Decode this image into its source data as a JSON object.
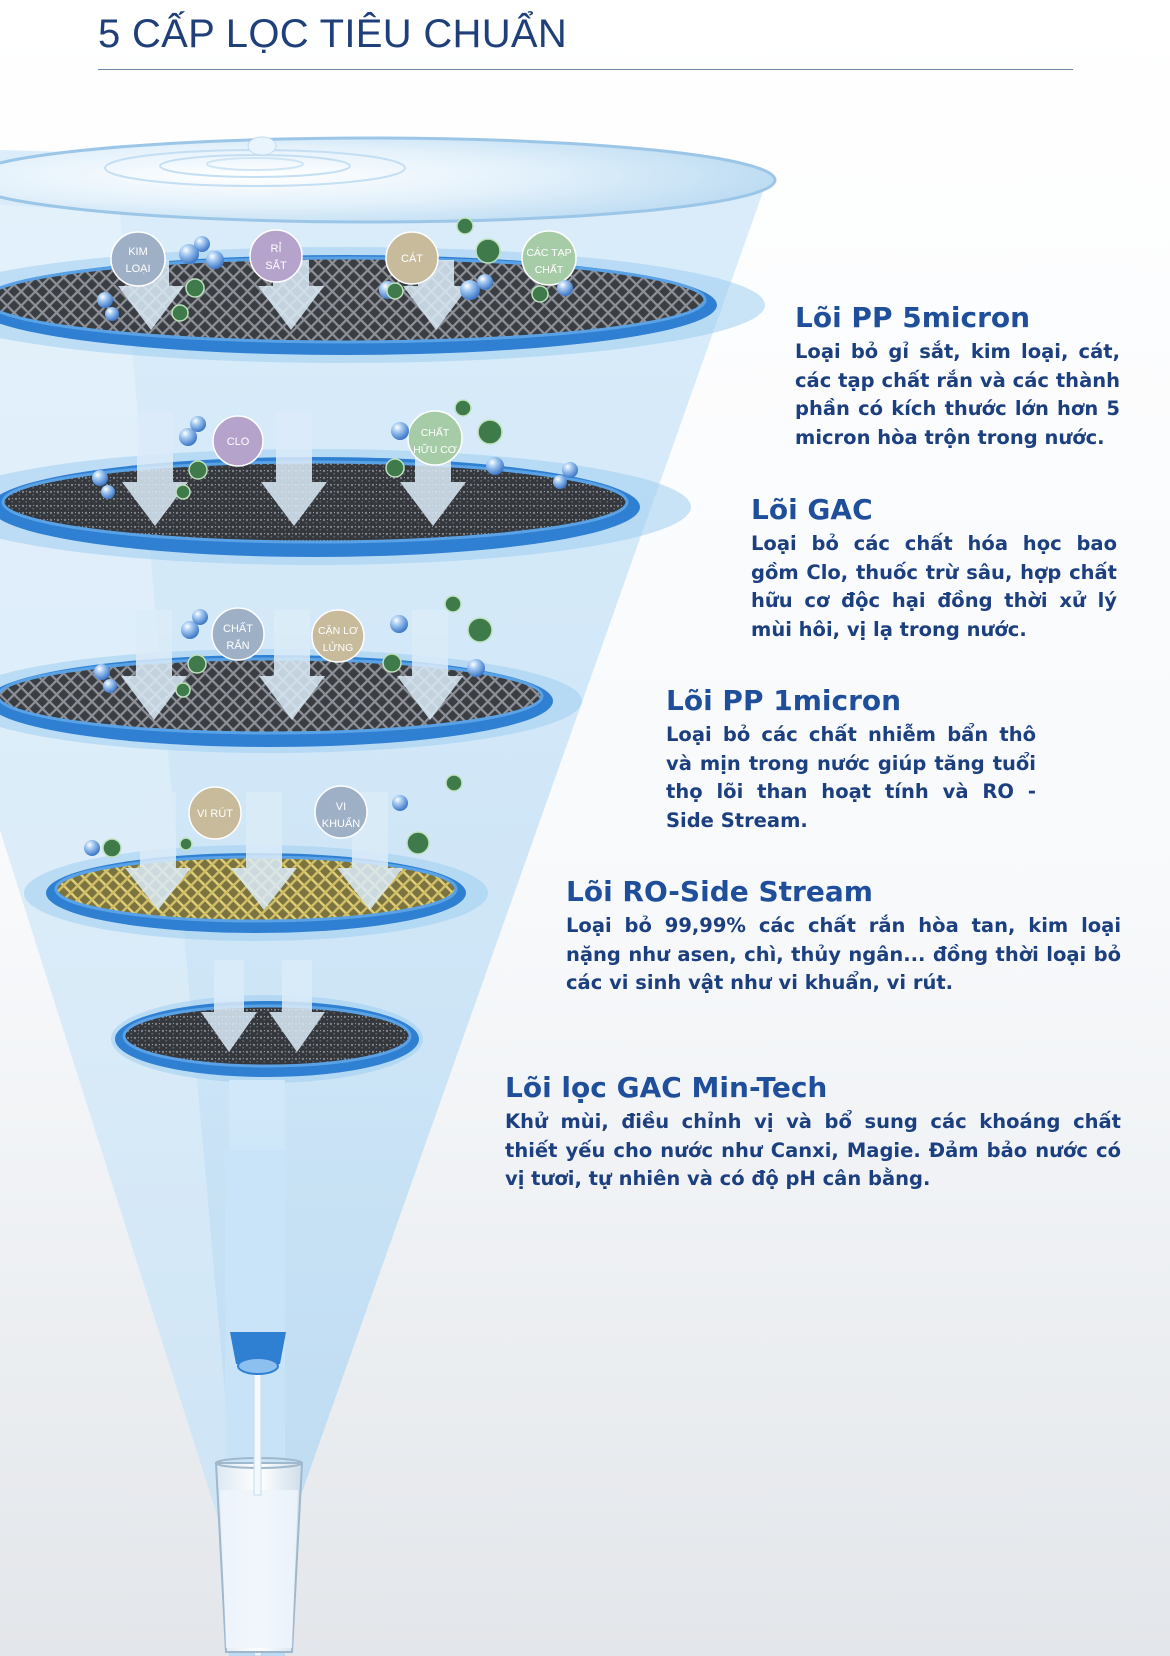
{
  "title": "5 CẤP LỌC TIÊU CHUẨN",
  "colors": {
    "title": "#1f3f7a",
    "stage_name": "#1f4f9a",
    "stage_desc": "#1c3f80",
    "rim_blue": "#2f7fd2",
    "funnel_light": "#cfe6f8",
    "mesh_dark": "#3a3d42",
    "mesh_gold": "#b8a555",
    "bubble_blue": "#5a93d9",
    "bacteria_green": "#3f7a4a"
  },
  "contaminant_labels": {
    "kim_loai": [
      "KIM",
      "LOẠI"
    ],
    "ri_sat": [
      "RỈ",
      "SẮT"
    ],
    "cat": [
      "CÁT"
    ],
    "cac_tap_chat": [
      "CÁC TẠP",
      "CHẤT"
    ],
    "clo": [
      "CLO"
    ],
    "chat_huu_co": [
      "CHẤT",
      "HỮU CƠ"
    ],
    "chat_ran": [
      "CHẤT",
      "RẮN"
    ],
    "can_lo_lung": [
      "CẶN LƠ",
      "LỬNG"
    ],
    "vi_rut": [
      "VI RÚT"
    ],
    "vi_khuan": [
      "VI",
      "KHUẨN"
    ]
  },
  "stages": [
    {
      "name": "Lõi PP 5micron",
      "description": "Loại bỏ gỉ sắt, kim loại, cát, các tạp chất rắn và các thành phần có kích thước lớn hơn 5 micron hòa trộn trong nước."
    },
    {
      "name": "Lõi GAC",
      "description": "Loại bỏ các chất hóa học bao gồm Clo, thuốc trừ sâu, hợp chất hữu cơ độc hại đồng thời xử lý mùi hôi, vị lạ trong nước."
    },
    {
      "name": "Lõi PP 1micron",
      "description": "Loại bỏ các chất nhiễm bẩn thô và mịn trong nước giúp tăng tuổi thọ lõi than hoạt tính và RO - Side Stream."
    },
    {
      "name": "Lõi RO-Side Stream",
      "description": "Loại bỏ 99,99% các chất rắn hòa tan, kim loại nặng như asen, chì, thủy ngân... đồng thời loại bỏ các vi sinh vật như vi khuẩn, vi rút."
    },
    {
      "name": "Lõi lọc GAC Min-Tech",
      "description": "Khử mùi, điều chỉnh vị và bổ sung các khoáng chất thiết yếu cho nước như Canxi, Magie. Đảm bảo nước có vị tươi, tự nhiên và có độ pH cân bằng."
    }
  ]
}
